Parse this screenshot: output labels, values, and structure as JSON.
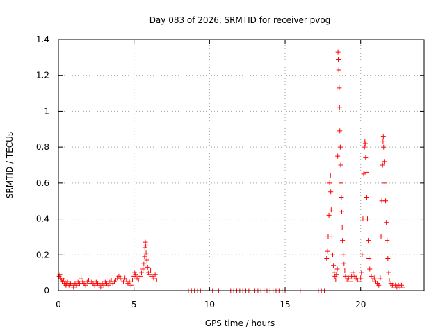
{
  "chart_data": {
    "type": "scatter",
    "title": "Day 083 of 2026, SRMTID for receiver pvog",
    "xlabel": "GPS time / hours",
    "ylabel": "SRMTID / TECUs",
    "xlim": [
      0,
      24.2
    ],
    "ylim": [
      0,
      1.4
    ],
    "x_ticks": [
      0,
      5,
      10,
      15,
      20
    ],
    "x_tick_labels": [
      "0",
      "5",
      "10",
      "15",
      "20"
    ],
    "y_ticks": [
      0,
      0.2,
      0.4,
      0.6,
      0.8,
      1.0,
      1.2,
      1.4
    ],
    "y_tick_labels": [
      "0",
      "0.2",
      "0.4",
      "0.6",
      "0.8",
      "1",
      "1.2",
      "1.4"
    ],
    "grid": true,
    "marker": "plus",
    "colors": {
      "series": "#ff0000",
      "grid": "#a0a0a0",
      "axis": "#000000",
      "background": "#ffffff"
    },
    "series": [
      {
        "name": "SRMTID",
        "points": [
          [
            0.0,
            0.06
          ],
          [
            0.05,
            0.08
          ],
          [
            0.1,
            0.09
          ],
          [
            0.15,
            0.07
          ],
          [
            0.2,
            0.06
          ],
          [
            0.25,
            0.05
          ],
          [
            0.3,
            0.07
          ],
          [
            0.35,
            0.06
          ],
          [
            0.4,
            0.04
          ],
          [
            0.45,
            0.05
          ],
          [
            0.5,
            0.03
          ],
          [
            0.55,
            0.04
          ],
          [
            0.6,
            0.05
          ],
          [
            0.7,
            0.03
          ],
          [
            0.8,
            0.04
          ],
          [
            0.9,
            0.03
          ],
          [
            1.0,
            0.02
          ],
          [
            1.1,
            0.04
          ],
          [
            1.2,
            0.03
          ],
          [
            1.3,
            0.05
          ],
          [
            1.4,
            0.04
          ],
          [
            1.5,
            0.07
          ],
          [
            1.6,
            0.05
          ],
          [
            1.7,
            0.04
          ],
          [
            1.8,
            0.03
          ],
          [
            1.9,
            0.05
          ],
          [
            2.0,
            0.06
          ],
          [
            2.1,
            0.04
          ],
          [
            2.2,
            0.05
          ],
          [
            2.3,
            0.04
          ],
          [
            2.4,
            0.03
          ],
          [
            2.5,
            0.05
          ],
          [
            2.6,
            0.04
          ],
          [
            2.7,
            0.03
          ],
          [
            2.8,
            0.02
          ],
          [
            2.9,
            0.04
          ],
          [
            3.0,
            0.03
          ],
          [
            3.1,
            0.05
          ],
          [
            3.2,
            0.04
          ],
          [
            3.3,
            0.03
          ],
          [
            3.4,
            0.05
          ],
          [
            3.5,
            0.06
          ],
          [
            3.6,
            0.04
          ],
          [
            3.7,
            0.05
          ],
          [
            3.8,
            0.06
          ],
          [
            3.9,
            0.07
          ],
          [
            4.0,
            0.08
          ],
          [
            4.1,
            0.07
          ],
          [
            4.2,
            0.06
          ],
          [
            4.3,
            0.05
          ],
          [
            4.4,
            0.07
          ],
          [
            4.5,
            0.06
          ],
          [
            4.6,
            0.04
          ],
          [
            4.7,
            0.05
          ],
          [
            4.8,
            0.03
          ],
          [
            4.9,
            0.06
          ],
          [
            5.0,
            0.08
          ],
          [
            5.05,
            0.1
          ],
          [
            5.1,
            0.09
          ],
          [
            5.2,
            0.07
          ],
          [
            5.3,
            0.06
          ],
          [
            5.4,
            0.08
          ],
          [
            5.5,
            0.1
          ],
          [
            5.6,
            0.12
          ],
          [
            5.65,
            0.15
          ],
          [
            5.7,
            0.19
          ],
          [
            5.72,
            0.24
          ],
          [
            5.75,
            0.27
          ],
          [
            5.78,
            0.25
          ],
          [
            5.8,
            0.21
          ],
          [
            5.85,
            0.17
          ],
          [
            5.9,
            0.13
          ],
          [
            5.95,
            0.1
          ],
          [
            6.0,
            0.09
          ],
          [
            6.1,
            0.11
          ],
          [
            6.2,
            0.08
          ],
          [
            6.3,
            0.07
          ],
          [
            6.4,
            0.09
          ],
          [
            6.5,
            0.06
          ],
          [
            8.6,
            0.0
          ],
          [
            8.8,
            0.0
          ],
          [
            9.0,
            0.0
          ],
          [
            9.2,
            0.0
          ],
          [
            9.4,
            0.0
          ],
          [
            10.1,
            0.0
          ],
          [
            10.2,
            0.0
          ],
          [
            10.6,
            0.0
          ],
          [
            11.4,
            0.0
          ],
          [
            11.6,
            0.0
          ],
          [
            11.8,
            0.0
          ],
          [
            12.0,
            0.0
          ],
          [
            12.2,
            0.0
          ],
          [
            12.4,
            0.0
          ],
          [
            12.6,
            0.0
          ],
          [
            13.0,
            0.0
          ],
          [
            13.2,
            0.0
          ],
          [
            13.4,
            0.0
          ],
          [
            13.6,
            0.0
          ],
          [
            13.8,
            0.0
          ],
          [
            14.0,
            0.0
          ],
          [
            14.2,
            0.0
          ],
          [
            14.4,
            0.0
          ],
          [
            14.6,
            0.0
          ],
          [
            14.8,
            0.0
          ],
          [
            15.0,
            0.0
          ],
          [
            16.0,
            0.0
          ],
          [
            17.2,
            0.0
          ],
          [
            17.4,
            0.0
          ],
          [
            17.6,
            0.0
          ],
          [
            17.75,
            0.18
          ],
          [
            17.8,
            0.22
          ],
          [
            17.85,
            0.3
          ],
          [
            17.9,
            0.42
          ],
          [
            17.95,
            0.6
          ],
          [
            18.0,
            0.64
          ],
          [
            18.02,
            0.55
          ],
          [
            18.05,
            0.45
          ],
          [
            18.1,
            0.3
          ],
          [
            18.15,
            0.2
          ],
          [
            18.2,
            0.14
          ],
          [
            18.25,
            0.1
          ],
          [
            18.3,
            0.08
          ],
          [
            18.35,
            0.06
          ],
          [
            18.4,
            0.09
          ],
          [
            18.45,
            0.12
          ],
          [
            18.48,
            0.75
          ],
          [
            18.5,
            1.33
          ],
          [
            18.52,
            1.29
          ],
          [
            18.55,
            1.23
          ],
          [
            18.58,
            1.13
          ],
          [
            18.6,
            1.02
          ],
          [
            18.62,
            0.89
          ],
          [
            18.65,
            0.8
          ],
          [
            18.68,
            0.7
          ],
          [
            18.7,
            0.6
          ],
          [
            18.72,
            0.52
          ],
          [
            18.75,
            0.44
          ],
          [
            18.78,
            0.35
          ],
          [
            18.8,
            0.28
          ],
          [
            18.85,
            0.2
          ],
          [
            18.9,
            0.15
          ],
          [
            18.95,
            0.11
          ],
          [
            19.0,
            0.08
          ],
          [
            19.1,
            0.06
          ],
          [
            19.2,
            0.07
          ],
          [
            19.3,
            0.05
          ],
          [
            19.4,
            0.08
          ],
          [
            19.5,
            0.1
          ],
          [
            19.6,
            0.08
          ],
          [
            19.7,
            0.07
          ],
          [
            19.8,
            0.06
          ],
          [
            19.9,
            0.05
          ],
          [
            20.0,
            0.07
          ],
          [
            20.05,
            0.1
          ],
          [
            20.1,
            0.2
          ],
          [
            20.15,
            0.4
          ],
          [
            20.2,
            0.65
          ],
          [
            20.25,
            0.8
          ],
          [
            20.28,
            0.83
          ],
          [
            20.3,
            0.82
          ],
          [
            20.33,
            0.74
          ],
          [
            20.36,
            0.66
          ],
          [
            20.4,
            0.52
          ],
          [
            20.45,
            0.4
          ],
          [
            20.5,
            0.28
          ],
          [
            20.55,
            0.18
          ],
          [
            20.6,
            0.12
          ],
          [
            20.7,
            0.08
          ],
          [
            20.8,
            0.06
          ],
          [
            20.9,
            0.07
          ],
          [
            21.0,
            0.05
          ],
          [
            21.1,
            0.04
          ],
          [
            21.2,
            0.03
          ],
          [
            21.3,
            0.07
          ],
          [
            21.35,
            0.3
          ],
          [
            21.4,
            0.5
          ],
          [
            21.45,
            0.7
          ],
          [
            21.48,
            0.83
          ],
          [
            21.5,
            0.86
          ],
          [
            21.52,
            0.8
          ],
          [
            21.55,
            0.72
          ],
          [
            21.6,
            0.6
          ],
          [
            21.65,
            0.5
          ],
          [
            21.7,
            0.38
          ],
          [
            21.75,
            0.28
          ],
          [
            21.8,
            0.18
          ],
          [
            21.85,
            0.1
          ],
          [
            21.9,
            0.06
          ],
          [
            22.0,
            0.04
          ],
          [
            22.1,
            0.03
          ],
          [
            22.2,
            0.02
          ],
          [
            22.3,
            0.03
          ],
          [
            22.4,
            0.02
          ],
          [
            22.5,
            0.03
          ],
          [
            22.6,
            0.02
          ],
          [
            22.7,
            0.03
          ],
          [
            22.8,
            0.02
          ]
        ]
      }
    ]
  }
}
